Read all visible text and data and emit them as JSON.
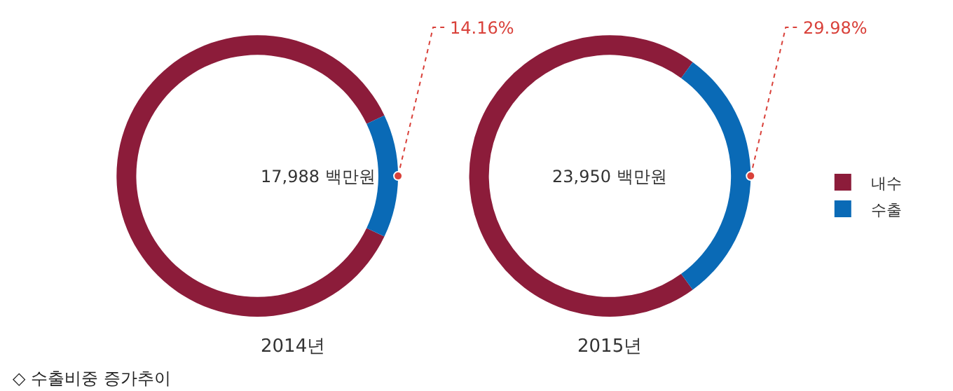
{
  "chart_data": [
    {
      "type": "donut",
      "title": "2014년",
      "categories": [
        "내수",
        "수출"
      ],
      "values": [
        85.84,
        14.16
      ],
      "colors": [
        "#8c1c3a",
        "#0a6ab6"
      ],
      "value_labels": [
        null,
        "14.16%"
      ],
      "annotations": [
        "17,988 백만원",
        "◇ 수출비중 증가추이"
      ],
      "legend": "right"
    },
    {
      "type": "donut",
      "title": "2015년",
      "categories": [
        null,
        null
      ],
      "values": [
        70.02,
        29.98
      ],
      "colors": [
        "#8c1c3a",
        "#0a6ab6"
      ],
      "value_labels": [
        null,
        "29.98%"
      ],
      "annotations": [
        "23,950 백만원"
      ],
      "legend": false
    }
  ]
}
